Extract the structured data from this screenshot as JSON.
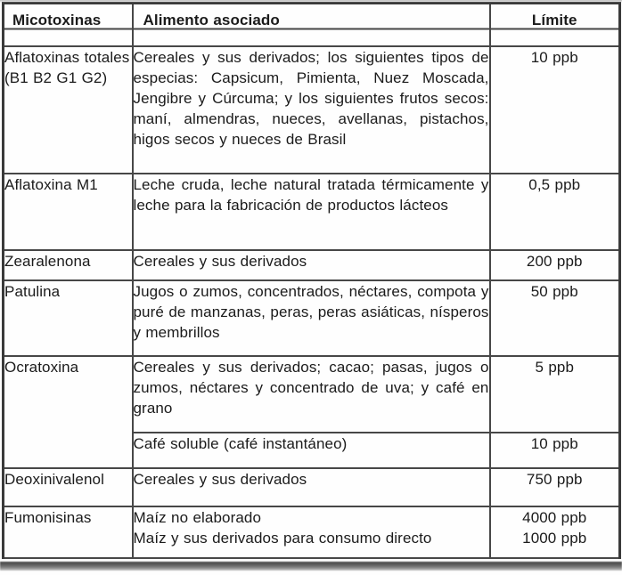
{
  "table": {
    "headers": {
      "mycotoxin": "Micotoxinas",
      "food": "Alimento asociado",
      "limit": "Límite"
    },
    "rows": [
      {
        "mycotoxin": "Aflatoxinas totales (B1 B2 G1 G2)",
        "food": "Cereales y sus derivados; los siguientes tipos de especias: Capsicum, Pimienta, Nuez Moscada, Jengibre y Cúrcuma; y los siguientes frutos secos: maní, almendras, nueces, avellanas, pistachos, higos secos y nueces de Brasil",
        "limit": "10 ppb"
      },
      {
        "mycotoxin": "Aflatoxina M1",
        "food": "Leche cruda, leche natural tratada térmicamente y leche para la fabricación de productos lácteos",
        "limit": "0,5 ppb"
      },
      {
        "mycotoxin": "Zearalenona",
        "food": "Cereales y sus derivados",
        "limit": "200 ppb"
      },
      {
        "mycotoxin": "Patulina",
        "food": "Jugos o zumos, concentrados, néctares, compota y puré de manzanas, peras, peras asiáticas, nísperos y membrillos",
        "limit": "50 ppb"
      },
      {
        "mycotoxin": "Ocratoxina",
        "food": "Cereales y sus derivados; cacao; pasas, jugos o zumos, néctares y concentrado de uva; y café en grano",
        "limit": "5 ppb",
        "food2": "Café soluble (café instantáneo)",
        "limit2": "10 ppb"
      },
      {
        "mycotoxin": "Deoxinivalenol",
        "food": "Cereales y sus derivados",
        "limit": "750 ppb"
      },
      {
        "mycotoxin": "Fumonisinas",
        "food_line1": "Maíz no elaborado",
        "food_line2": "Maíz y sus derivados para consumo directo",
        "limit_line1": "4000 ppb",
        "limit_line2": "1000 ppb"
      }
    ]
  }
}
